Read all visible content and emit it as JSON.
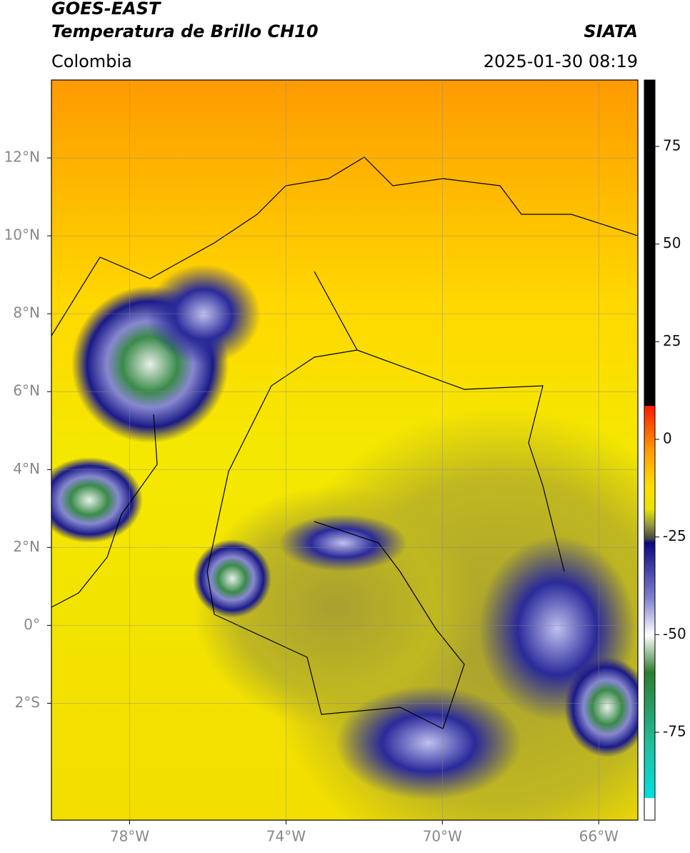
{
  "header": {
    "title": "GOES-EAST",
    "subtitle": "Temperatura de Brillo CH10",
    "source": "SIATA",
    "region": "Colombia",
    "timestamp": "2025-01-30 08:19"
  },
  "map": {
    "xlim": [
      -80,
      -65
    ],
    "ylim": [
      -5,
      14
    ],
    "xticks": [
      {
        "value": -78,
        "label": "78°W"
      },
      {
        "value": -74,
        "label": "74°W"
      },
      {
        "value": -70,
        "label": "70°W"
      },
      {
        "value": -66,
        "label": "66°W"
      }
    ],
    "yticks": [
      {
        "value": 12,
        "label": "12°N"
      },
      {
        "value": 10,
        "label": "10°N"
      },
      {
        "value": 8,
        "label": "8°N"
      },
      {
        "value": 6,
        "label": "6°N"
      },
      {
        "value": 4,
        "label": "4°N"
      },
      {
        "value": 2,
        "label": "2°N"
      },
      {
        "value": 0,
        "label": "0°"
      },
      {
        "value": -2,
        "label": "2°S"
      }
    ],
    "grid": true
  },
  "colorbar": {
    "lim": [
      -97.5,
      92
    ],
    "ticks": [
      75,
      50,
      25,
      0,
      -25,
      -50,
      -75
    ]
  }
}
